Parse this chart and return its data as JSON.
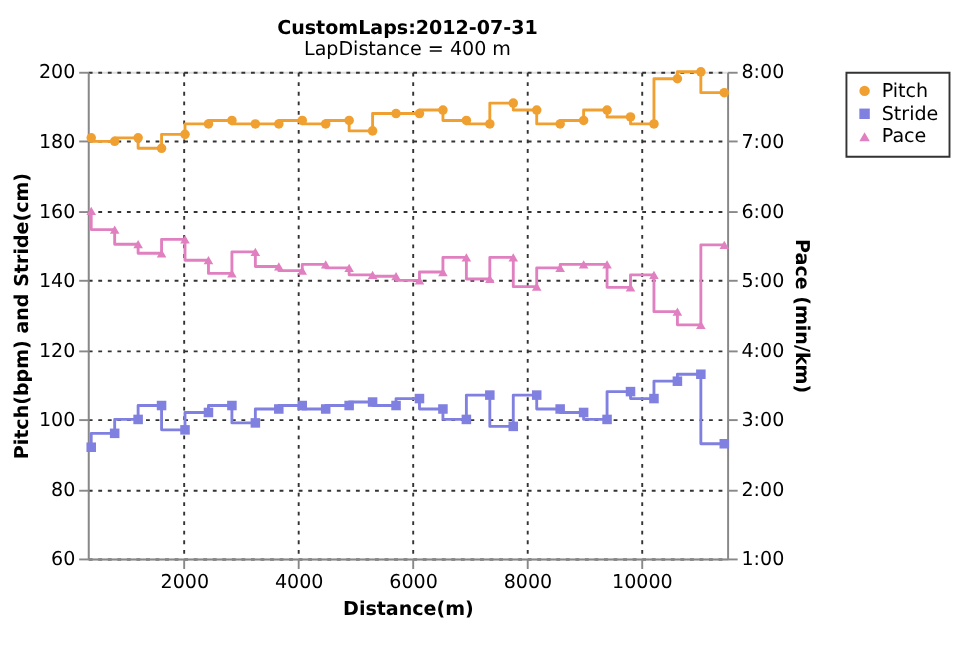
{
  "chart_data": {
    "type": "step",
    "title": "CustomLaps:2012-07-31",
    "subtitle": "LapDistance = 400 m",
    "xlabel": "Distance(m)",
    "ylabel": "Pitch(bpm) and Stride(cm)",
    "y2label": "Pace (min/km)",
    "x": [
      380,
      790,
      1200,
      1610,
      2020,
      2430,
      2840,
      3250,
      3660,
      4070,
      4480,
      4890,
      5300,
      5710,
      6120,
      6530,
      6940,
      7350,
      7760,
      8170,
      8580,
      8990,
      9400,
      9810,
      10220,
      10630,
      11040,
      11450
    ],
    "series": [
      {
        "name": "Pitch",
        "color": "#f0a030",
        "marker": "circle",
        "values": [
          181,
          180,
          181,
          178,
          182,
          185,
          186,
          185,
          185,
          186,
          185,
          186,
          183,
          188,
          188,
          189,
          186,
          185,
          191,
          189,
          185,
          186,
          189,
          187,
          185,
          198,
          200,
          194
        ]
      },
      {
        "name": "Stride",
        "color": "#8080e0",
        "marker": "square",
        "values": [
          92,
          96,
          100,
          104,
          97,
          102,
          104,
          99,
          103,
          104,
          103,
          104,
          105,
          104,
          106,
          103,
          100,
          107,
          98,
          107,
          103,
          102,
          100,
          108,
          106,
          111,
          113,
          93
        ]
      },
      {
        "name": "Pace",
        "color": "#e080c0",
        "marker": "triangle",
        "axis": "y2",
        "values": [
          6.0,
          5.73,
          5.52,
          5.39,
          5.59,
          5.29,
          5.1,
          5.41,
          5.2,
          5.14,
          5.23,
          5.18,
          5.08,
          5.06,
          5.0,
          5.12,
          5.33,
          5.02,
          5.33,
          4.91,
          5.18,
          5.23,
          5.23,
          4.9,
          5.08,
          4.55,
          4.36,
          5.51
        ]
      }
    ],
    "xlim": [
      320,
      11500
    ],
    "xticks": [
      2000,
      4000,
      6000,
      8000,
      10000
    ],
    "ylim": [
      60,
      200
    ],
    "yticks": [
      60,
      80,
      100,
      120,
      140,
      160,
      180,
      200
    ],
    "y2lim": [
      1,
      8
    ],
    "y2ticks": [
      {
        "value": 1,
        "label": "1:00"
      },
      {
        "value": 2,
        "label": "2:00"
      },
      {
        "value": 3,
        "label": "3:00"
      },
      {
        "value": 4,
        "label": "4:00"
      },
      {
        "value": 5,
        "label": "5:00"
      },
      {
        "value": 6,
        "label": "6:00"
      },
      {
        "value": 7,
        "label": "7:00"
      },
      {
        "value": 8,
        "label": "8:00"
      }
    ],
    "grid": true,
    "legend": "top right"
  }
}
